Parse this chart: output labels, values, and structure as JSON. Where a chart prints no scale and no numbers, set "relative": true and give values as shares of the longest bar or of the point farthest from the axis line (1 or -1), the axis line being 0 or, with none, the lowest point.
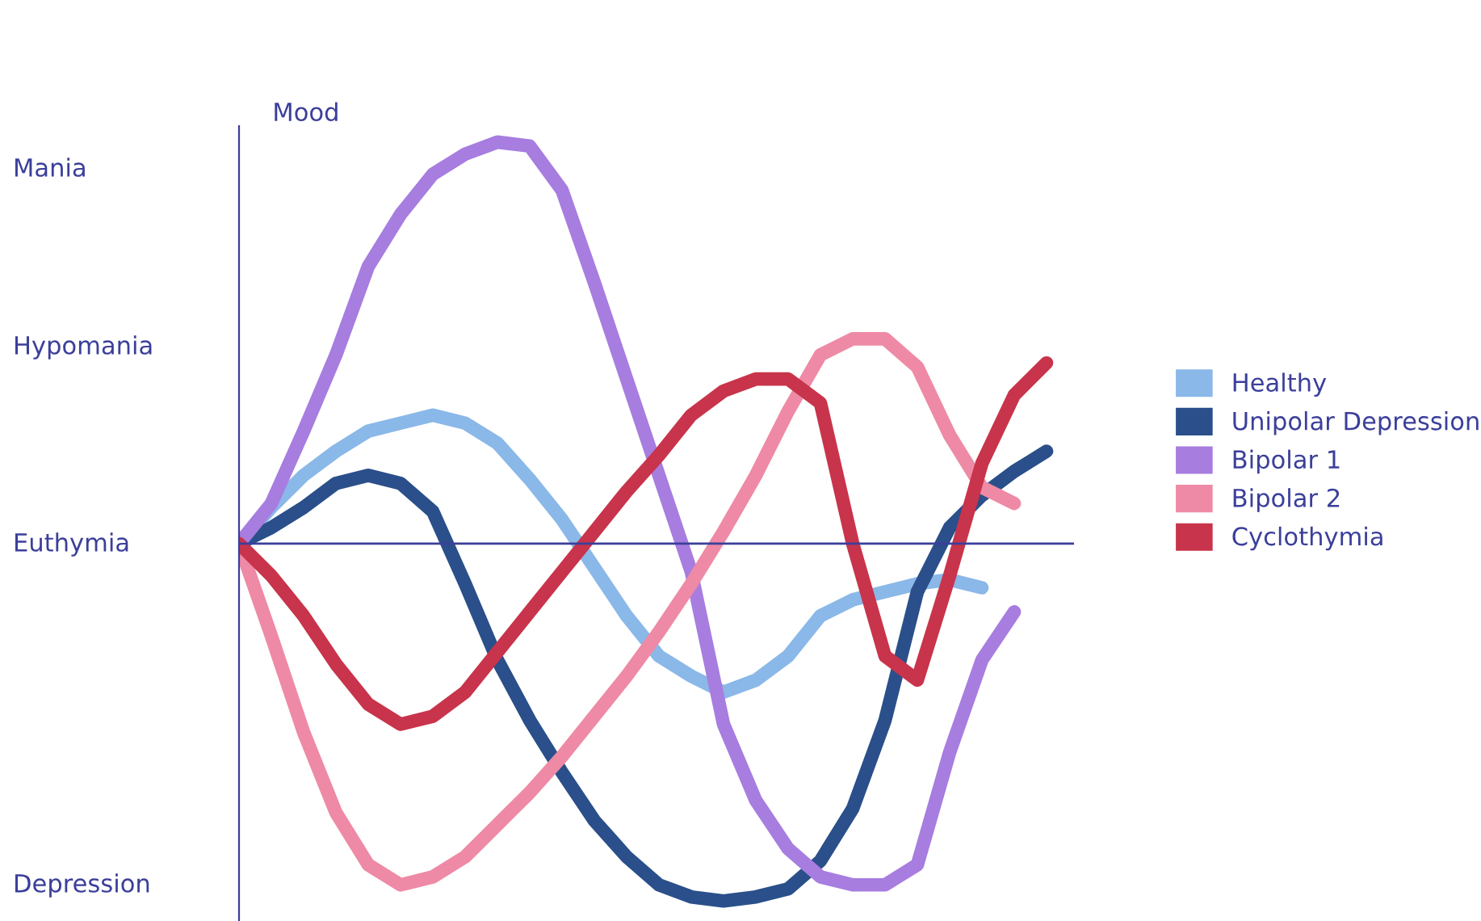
{
  "chart_data": {
    "type": "line",
    "relative": true,
    "ylabel": "Mood",
    "categories": [
      null,
      null,
      null,
      null,
      null,
      null,
      null,
      null,
      null,
      null,
      null,
      null,
      null,
      null,
      null,
      null,
      null,
      null,
      null,
      null,
      null,
      null,
      null,
      null,
      null,
      null
    ],
    "annotations": [
      "Mania",
      "Hypomania",
      "Euthymia",
      "Depression"
    ],
    "ref_lines": [
      {
        "axis": "y",
        "value": 0,
        "color": "#3b3f9a"
      }
    ],
    "grid": false,
    "legend": "right",
    "marker": "none",
    "line_style": "solid",
    "series": [
      {
        "name": "Healthy",
        "color": "#8ab8e8",
        "values": [
          0,
          0.09,
          0.17,
          0.23,
          0.28,
          0.3,
          0.32,
          0.3,
          0.25,
          0.16,
          0.06,
          -0.06,
          -0.18,
          -0.28,
          -0.33,
          -0.37,
          -0.34,
          -0.28,
          -0.18,
          -0.14,
          -0.12,
          -0.1,
          -0.09,
          -0.11,
          null,
          null
        ]
      },
      {
        "name": "Unipolar Depression",
        "color": "#2a4f8a",
        "values": [
          0,
          0.04,
          0.09,
          0.15,
          0.17,
          0.15,
          0.08,
          -0.1,
          -0.29,
          -0.44,
          -0.57,
          -0.69,
          -0.78,
          -0.85,
          -0.88,
          -0.89,
          -0.88,
          -0.86,
          -0.79,
          -0.66,
          -0.44,
          -0.12,
          0.04,
          0.12,
          0.18,
          0.23
        ]
      },
      {
        "name": "Bipolar 1",
        "color": "#a77de0",
        "values": [
          0,
          0.1,
          0.28,
          0.47,
          0.69,
          0.82,
          0.92,
          0.97,
          1,
          0.99,
          0.88,
          0.65,
          0.41,
          0.17,
          -0.07,
          -0.45,
          -0.64,
          -0.76,
          -0.83,
          -0.85,
          -0.85,
          -0.8,
          -0.52,
          -0.29,
          -0.17,
          null
        ]
      },
      {
        "name": "Bipolar 2",
        "color": "#ee8aa5",
        "values": [
          0,
          -0.23,
          -0.47,
          -0.67,
          -0.8,
          -0.85,
          -0.83,
          -0.78,
          -0.7,
          -0.62,
          -0.53,
          -0.43,
          -0.33,
          -0.22,
          -0.1,
          0.03,
          0.17,
          0.33,
          0.47,
          0.51,
          0.51,
          0.44,
          0.27,
          0.14,
          0.1,
          null
        ]
      },
      {
        "name": "Cyclothymia",
        "color": "#c8344b",
        "values": [
          0,
          -0.08,
          -0.18,
          -0.3,
          -0.4,
          -0.45,
          -0.43,
          -0.37,
          -0.27,
          -0.17,
          -0.07,
          0.03,
          0.13,
          0.22,
          0.32,
          0.38,
          0.41,
          0.41,
          0.35,
          0,
          -0.28,
          -0.34,
          -0.08,
          0.2,
          0.37,
          0.45
        ]
      }
    ]
  }
}
